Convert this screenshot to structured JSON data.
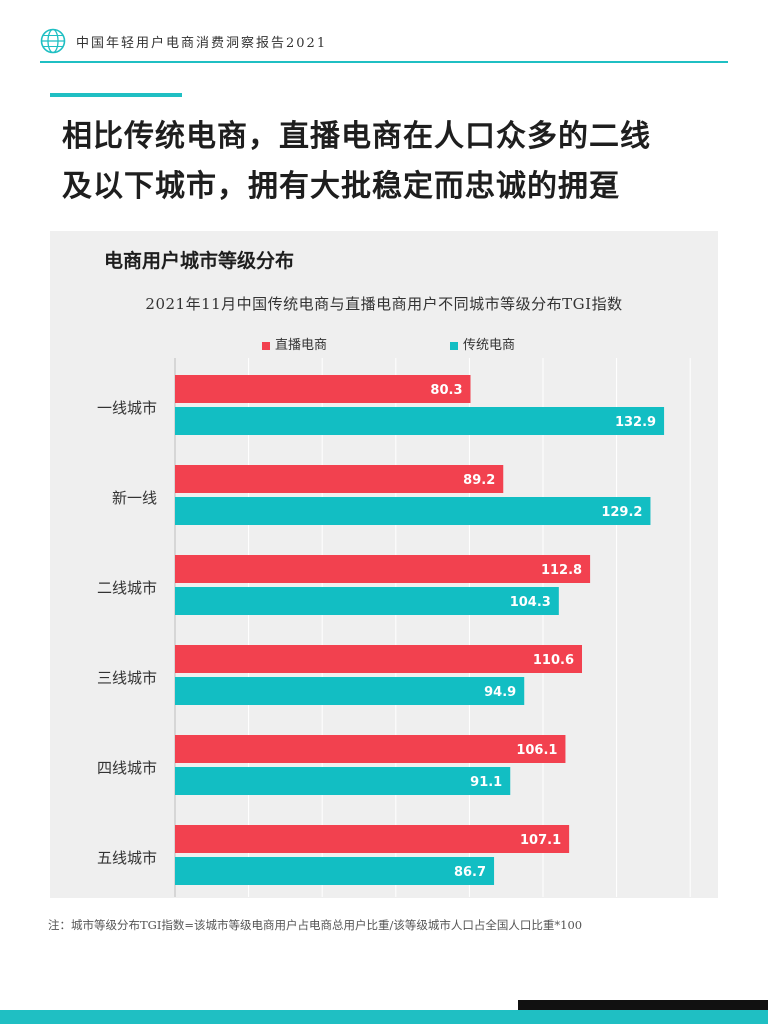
{
  "header": {
    "report_title": "中国年轻用户电商消费洞察报告2021"
  },
  "headline": {
    "line1": "相比传统电商，直播电商在人口众多的二线",
    "line2": "及以下城市，拥有大批稳定而忠诚的拥趸"
  },
  "panel": {
    "title": "电商用户城市等级分布"
  },
  "colors": {
    "live": "#f2414f",
    "traditional": "#12bec3",
    "accent": "#1fbfc3"
  },
  "chart_data": {
    "type": "bar",
    "orientation": "horizontal",
    "title": "2021年11月中国传统电商与直播电商用户不同城市等级分布TGI指数",
    "categories": [
      "一线城市",
      "新一线",
      "二线城市",
      "三线城市",
      "四线城市",
      "五线城市"
    ],
    "series": [
      {
        "name": "直播电商",
        "values": [
          80.3,
          89.2,
          112.8,
          110.6,
          106.1,
          107.1
        ]
      },
      {
        "name": "传统电商",
        "values": [
          132.9,
          129.2,
          104.3,
          94.9,
          91.1,
          86.7
        ]
      }
    ],
    "xlim": [
      0,
      140
    ],
    "grid": true,
    "legend": "top"
  },
  "footnote": "注：城市等级分布TGI指数=该城市等级电商用户占电商总用户比重/该等级城市人口占全国人口比重*100"
}
